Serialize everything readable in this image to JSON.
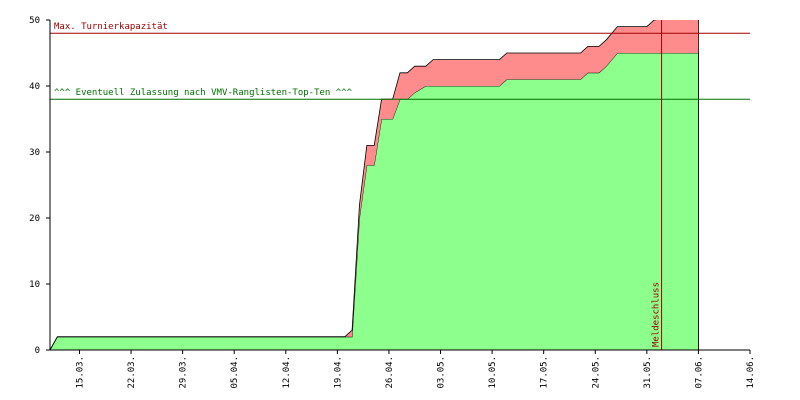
{
  "chart_data": {
    "type": "stacked-area",
    "x": [
      0,
      1,
      40,
      41,
      42,
      43,
      44,
      45,
      46.5,
      47.5,
      48.5,
      49.5,
      51,
      52,
      61,
      62,
      72,
      73,
      74.5,
      75.5,
      77,
      81,
      82,
      88
    ],
    "series": [
      {
        "color": "#8cff8c",
        "values": [
          0,
          2,
          2,
          2,
          20,
          28,
          28,
          35,
          35,
          38,
          38,
          39,
          40,
          40,
          40,
          41,
          41,
          42,
          42,
          43,
          45,
          45,
          45,
          45
        ]
      },
      {
        "color": "#ff8c8c",
        "values": [
          0,
          0,
          0,
          1,
          2,
          3,
          3,
          3,
          3,
          4,
          4,
          4,
          3,
          4,
          4,
          4,
          4,
          4,
          4,
          4,
          4,
          4,
          5,
          6
        ]
      }
    ],
    "xlim": [
      0,
      95
    ],
    "xticks": [
      {
        "value": 4,
        "label": "15.03."
      },
      {
        "value": 11,
        "label": "22.03."
      },
      {
        "value": 18,
        "label": "29.03."
      },
      {
        "value": 25,
        "label": "05.04."
      },
      {
        "value": 32,
        "label": "12.04."
      },
      {
        "value": 39,
        "label": "19.04."
      },
      {
        "value": 46,
        "label": "26.04."
      },
      {
        "value": 53,
        "label": "03.05."
      },
      {
        "value": 60,
        "label": "10.05."
      },
      {
        "value": 67,
        "label": "17.05."
      },
      {
        "value": 74,
        "label": "24.05."
      },
      {
        "value": 81,
        "label": "31.05."
      },
      {
        "value": 88,
        "label": "07.06."
      },
      {
        "value": 95,
        "label": "14.06."
      }
    ],
    "ylim": [
      0,
      50
    ],
    "yticks": [
      0,
      10,
      20,
      30,
      40,
      50
    ],
    "reference_lines": [
      {
        "value": 48,
        "label": "Max. Turnierkapazität",
        "color": "#a00000"
      },
      {
        "value": 38,
        "label": "^^^ Eventuell Zulassung nach VMV-Ranglisten-Top-Ten ^^^",
        "color": "#007000"
      }
    ],
    "vertical_lines": [
      {
        "x": 83,
        "label": "Meldeschluss",
        "color": "#a00000"
      }
    ]
  }
}
